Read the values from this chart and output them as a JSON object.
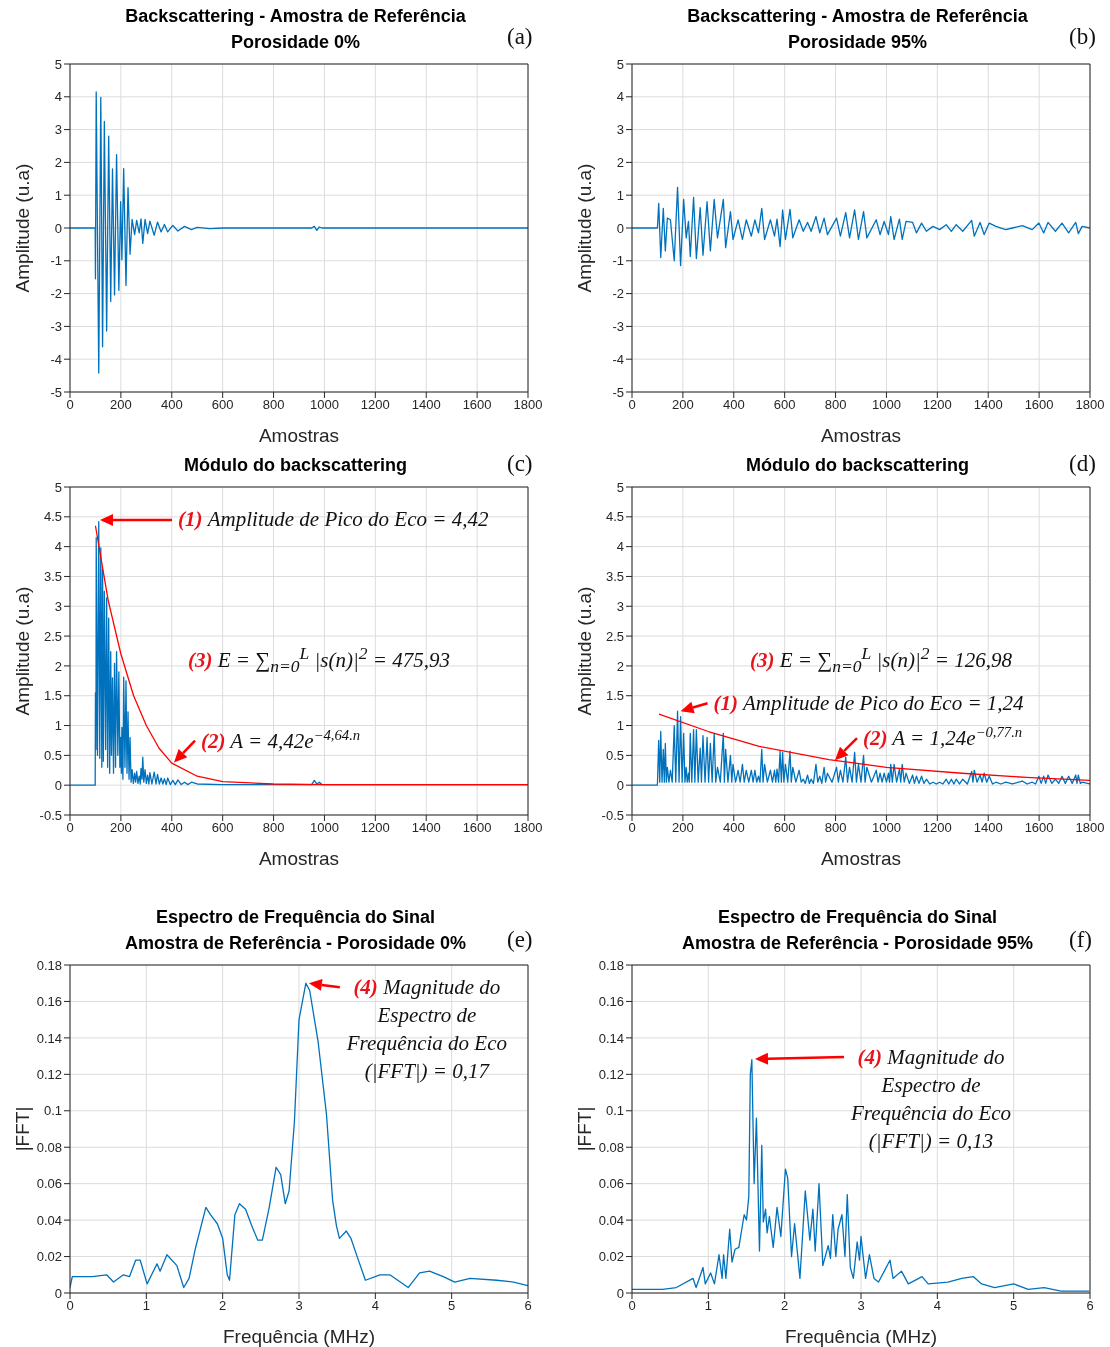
{
  "chart_data": [
    {
      "type": "line",
      "title": "Backscattering - Amostra de Referência",
      "subtitle": "Porosidade 0%",
      "xlabel": "Amostras",
      "ylabel": "Amplitude (u.a)",
      "xlim": [
        0,
        1800
      ],
      "ylim": [
        -5,
        5
      ],
      "xticks": [
        0,
        200,
        400,
        600,
        800,
        1000,
        1200,
        1400,
        1600,
        1800
      ],
      "yticks": [
        -5,
        -4,
        -3,
        -2,
        -1,
        0,
        1,
        2,
        3,
        4,
        5
      ],
      "grid": true,
      "series": [
        {
          "color": "#0072bd",
          "x": [
            0,
            99,
            100,
            103,
            113,
            121,
            128,
            135,
            144,
            152,
            160,
            167,
            175,
            183,
            192,
            199,
            204,
            211,
            220,
            228,
            236,
            244,
            254,
            262,
            272,
            279,
            286,
            295,
            305,
            314,
            331,
            344,
            358,
            371,
            384,
            404,
            424,
            450,
            477,
            500,
            550,
            600,
            950,
            960,
            970,
            980,
            990,
            1800
          ],
          "values": [
            0,
            0,
            -1.55,
            4.15,
            -4.42,
            3.98,
            -3.62,
            3.25,
            -3.14,
            2.8,
            -2.24,
            1.8,
            -2.04,
            2.24,
            -1.9,
            0.8,
            -0.97,
            1.81,
            -1.75,
            1.23,
            -0.8,
            0.26,
            -0.2,
            0.23,
            -0.15,
            0.28,
            -0.47,
            0.26,
            -0.17,
            0.21,
            -0.22,
            0.18,
            -0.12,
            0.11,
            -0.12,
            0.08,
            -0.09,
            0.05,
            -0.05,
            0.02,
            -0.02,
            0,
            0,
            0.05,
            -0.07,
            0.03,
            0,
            0
          ]
        }
      ],
      "annotations": [
        "(a)"
      ]
    },
    {
      "type": "line",
      "title": "Backscattering - Amostra de Referência",
      "subtitle": "Porosidade 95%",
      "xlabel": "Amostras",
      "ylabel": "Amplitude (u.a)",
      "xlim": [
        0,
        1800
      ],
      "ylim": [
        -5,
        5
      ],
      "xticks": [
        0,
        200,
        400,
        600,
        800,
        1000,
        1200,
        1400,
        1600,
        1800
      ],
      "yticks": [
        -5,
        -4,
        -3,
        -2,
        -1,
        0,
        1,
        2,
        3,
        4,
        5
      ],
      "grid": true,
      "series": [
        {
          "color": "#0072bd",
          "x": [
            0,
            99,
            100,
            105,
            113,
            123,
            131,
            139,
            151,
            166,
            179,
            191,
            203,
            213,
            222,
            229,
            242,
            253,
            268,
            279,
            295,
            308,
            323,
            336,
            359,
            368,
            387,
            397,
            417,
            434,
            449,
            469,
            483,
            497,
            510,
            521,
            544,
            560,
            570,
            582,
            592,
            603,
            621,
            632,
            657,
            673,
            690,
            704,
            723,
            738,
            755,
            768,
            804,
            819,
            840,
            855,
            875,
            890,
            910,
            923,
            960,
            975,
            991,
            1008,
            1017,
            1030,
            1051,
            1062,
            1077,
            1103,
            1118,
            1138,
            1157,
            1183,
            1209,
            1235,
            1255,
            1274,
            1300,
            1335,
            1345,
            1368,
            1384,
            1404,
            1430,
            1469,
            1495,
            1534,
            1573,
            1599,
            1618,
            1635,
            1664,
            1690,
            1716,
            1744,
            1754,
            1769,
            1800
          ],
          "values": [
            0,
            0,
            0,
            0.75,
            -0.9,
            0.6,
            -0.7,
            0.3,
            0.25,
            -1.0,
            1.24,
            -1.15,
            0.87,
            -0.3,
            0.2,
            -0.87,
            0.93,
            -0.93,
            0.62,
            -0.83,
            0.8,
            -0.7,
            0.87,
            -0.3,
            0.87,
            -0.6,
            0.5,
            -0.35,
            0.25,
            -0.35,
            0.25,
            -0.25,
            0.25,
            -0.15,
            0.6,
            -0.35,
            0.25,
            -0.25,
            0.27,
            -0.57,
            0.55,
            -0.35,
            0.57,
            -0.3,
            0.25,
            -0.1,
            0.17,
            -0.1,
            0.35,
            -0.15,
            0.3,
            -0.2,
            0.3,
            -0.25,
            0.47,
            -0.3,
            0.55,
            -0.35,
            0.5,
            -0.3,
            0.25,
            -0.2,
            0.2,
            -0.2,
            0.35,
            -0.35,
            0.27,
            -0.35,
            0.2,
            0.17,
            -0.15,
            0.15,
            -0.1,
            0.05,
            -0.05,
            0.1,
            -0.1,
            0.1,
            -0.1,
            0.23,
            -0.25,
            0.17,
            -0.2,
            0.15,
            0.05,
            -0.05,
            0,
            0.07,
            -0.05,
            0.15,
            -0.15,
            0.17,
            -0.1,
            0.15,
            -0.15,
            0.17,
            -0.17,
            0.05,
            0
          ]
        }
      ],
      "annotations": [
        "(b)"
      ]
    },
    {
      "type": "line",
      "title": "Módulo do backscattering",
      "xlabel": "Amostras",
      "ylabel": "Amplitude (u.a)",
      "xlim": [
        0,
        1800
      ],
      "ylim": [
        -0.5,
        5
      ],
      "xticks": [
        0,
        200,
        400,
        600,
        800,
        1000,
        1200,
        1400,
        1600,
        1800
      ],
      "yticks": [
        -0.5,
        0,
        0.5,
        1,
        1.5,
        2,
        2.5,
        3,
        3.5,
        4,
        4.5,
        5
      ],
      "grid": true,
      "series": [
        {
          "color": "#0072bd",
          "x": [
            0,
            99,
            100,
            102,
            103,
            108,
            113,
            117,
            121,
            125,
            128,
            131,
            135,
            140,
            144,
            148,
            152,
            156,
            160,
            163,
            167,
            171,
            175,
            179,
            183,
            188,
            192,
            196,
            199,
            202,
            204,
            208,
            211,
            216,
            220,
            224,
            228,
            232,
            236,
            240,
            244,
            249,
            254,
            258,
            262,
            267,
            272,
            276,
            279,
            283,
            286,
            290,
            295,
            300,
            305,
            310,
            314,
            322,
            331,
            338,
            344,
            351,
            358,
            365,
            371,
            378,
            384,
            394,
            404,
            414,
            424,
            437,
            450,
            464,
            477,
            500,
            600,
            950,
            960,
            970,
            980,
            990,
            1800
          ],
          "values": [
            0,
            0,
            1.55,
            0.6,
            4.15,
            0.5,
            4.42,
            0.45,
            3.98,
            0.3,
            3.62,
            0.4,
            3.25,
            0.6,
            3.14,
            0.3,
            2.8,
            0.2,
            2.24,
            0.5,
            1.8,
            0.2,
            2.04,
            0.3,
            2.24,
            0.5,
            1.9,
            0.3,
            0.8,
            0.2,
            0.97,
            0.1,
            1.81,
            0.3,
            1.75,
            0.2,
            1.23,
            0.1,
            0.8,
            0.05,
            0.26,
            0.03,
            0.2,
            0.05,
            0.23,
            0.03,
            0.15,
            0.02,
            0.28,
            0.1,
            0.47,
            0.05,
            0.26,
            0.03,
            0.17,
            0.02,
            0.21,
            0.02,
            0.22,
            0.02,
            0.18,
            0.02,
            0.12,
            0.02,
            0.11,
            0.01,
            0.12,
            0.01,
            0.08,
            0.01,
            0.09,
            0.01,
            0.05,
            0.01,
            0.05,
            0.02,
            0.01,
            0.01,
            0.08,
            0.02,
            0.05,
            0.01,
            0.01
          ]
        },
        {
          "color": "#ff0000",
          "x": [
            100,
            150,
            200,
            250,
            300,
            350,
            400,
            500,
            600,
            800,
            1000,
            1800
          ],
          "values": [
            4.35,
            3.1,
            2.2,
            1.5,
            1.0,
            0.62,
            0.37,
            0.15,
            0.06,
            0.02,
            0.01,
            0.01
          ]
        }
      ],
      "annotations": [
        "(c)",
        "(1) Amplitude de Pico do Eco = 4,42",
        "(3) E = ∑$_{n=0}$$^{L}$ |s(n)|$^{2}$ = 475,93",
        {
          "text": "(2) A = 4,42e$^{−4,64.n}$",
          "x": 397,
          "y": 0.38
        }
      ]
    },
    {
      "type": "line",
      "title": "Módulo do backscattering",
      "xlabel": "Amostras",
      "ylabel": "Amplitude (u.a)",
      "xlim": [
        0,
        1800
      ],
      "ylim": [
        -0.5,
        5
      ],
      "xticks": [
        0,
        200,
        400,
        600,
        800,
        1000,
        1200,
        1400,
        1600,
        1800
      ],
      "yticks": [
        -0.5,
        0,
        0.5,
        1,
        1.5,
        2,
        2.5,
        3,
        3.5,
        4,
        4.5,
        5
      ],
      "grid": true,
      "series": [
        {
          "color": "#0072bd",
          "x": [
            0,
            99,
            100,
            105,
            109,
            113,
            118,
            123,
            127,
            131,
            135,
            139,
            145,
            151,
            158,
            166,
            172,
            179,
            185,
            191,
            197,
            203,
            208,
            213,
            217,
            222,
            225,
            229,
            235,
            242,
            247,
            253,
            260,
            268,
            273,
            279,
            287,
            295,
            301,
            308,
            315,
            323,
            329,
            336,
            347,
            359,
            363,
            368,
            377,
            387,
            392,
            397,
            407,
            417,
            425,
            434,
            441,
            449,
            459,
            469,
            476,
            483,
            490,
            497,
            503,
            510,
            515,
            521,
            532,
            544,
            552,
            560,
            565,
            570,
            576,
            582,
            587,
            592,
            597,
            603,
            612,
            621,
            626,
            632,
            644,
            657,
            665,
            673,
            681,
            690,
            697,
            704,
            713,
            723,
            730,
            738,
            746,
            755,
            761,
            768,
            786,
            804,
            811,
            819,
            829,
            840,
            847,
            855,
            865,
            875,
            882,
            890,
            900,
            910,
            916,
            923,
            941,
            960,
            967,
            975,
            983,
            991,
            1000,
            1008,
            1012,
            1017,
            1023,
            1030,
            1040,
            1051,
            1056,
            1062,
            1070,
            1077,
            1090,
            1103,
            1110,
            1118,
            1128,
            1138,
            1147,
            1157,
            1170,
            1183,
            1196,
            1209,
            1222,
            1235,
            1245,
            1255,
            1265,
            1274,
            1287,
            1300,
            1318,
            1335,
            1340,
            1345,
            1356,
            1368,
            1376,
            1384,
            1394,
            1404,
            1417,
            1430,
            1450,
            1469,
            1495,
            1534,
            1553,
            1573,
            1586,
            1599,
            1608,
            1618,
            1626,
            1635,
            1650,
            1664,
            1677,
            1690,
            1703,
            1716,
            1730,
            1744,
            1749,
            1754,
            1762,
            1769,
            1800
          ],
          "values": [
            0,
            0,
            0.02,
            0.75,
            0.05,
            0.9,
            0.05,
            0.6,
            0.05,
            0.7,
            0.05,
            0.3,
            0.05,
            0.25,
            0.05,
            1.0,
            0.05,
            1.24,
            0.05,
            1.15,
            0.05,
            0.87,
            0.05,
            0.3,
            0.05,
            0.2,
            0.05,
            0.87,
            0.05,
            0.93,
            0.05,
            0.93,
            0.05,
            0.62,
            0.05,
            0.83,
            0.05,
            0.8,
            0.05,
            0.7,
            0.05,
            0.87,
            0.05,
            0.3,
            0.05,
            0.87,
            0.05,
            0.6,
            0.05,
            0.5,
            0.05,
            0.35,
            0.05,
            0.25,
            0.05,
            0.35,
            0.05,
            0.25,
            0.05,
            0.25,
            0.05,
            0.25,
            0.05,
            0.15,
            0.05,
            0.6,
            0.05,
            0.35,
            0.05,
            0.25,
            0.05,
            0.25,
            0.05,
            0.27,
            0.05,
            0.57,
            0.05,
            0.55,
            0.05,
            0.35,
            0.05,
            0.57,
            0.05,
            0.3,
            0.05,
            0.25,
            0.05,
            0.1,
            0.03,
            0.17,
            0.03,
            0.1,
            0.03,
            0.35,
            0.05,
            0.15,
            0.03,
            0.3,
            0.05,
            0.2,
            0.05,
            0.3,
            0.05,
            0.25,
            0.05,
            0.47,
            0.05,
            0.3,
            0.05,
            0.55,
            0.05,
            0.35,
            0.05,
            0.5,
            0.05,
            0.3,
            0.05,
            0.25,
            0.05,
            0.2,
            0.05,
            0.2,
            0.05,
            0.2,
            0.05,
            0.35,
            0.05,
            0.35,
            0.05,
            0.27,
            0.05,
            0.35,
            0.05,
            0.2,
            0.03,
            0.17,
            0.03,
            0.15,
            0.03,
            0.15,
            0.03,
            0.1,
            0.02,
            0.05,
            0.02,
            0.05,
            0.02,
            0.1,
            0.02,
            0.1,
            0.02,
            0.1,
            0.02,
            0.1,
            0.02,
            0.23,
            0.05,
            0.25,
            0.05,
            0.17,
            0.05,
            0.2,
            0.05,
            0.15,
            0.02,
            0.05,
            0.02,
            0.05,
            0.02,
            0.07,
            0.02,
            0.05,
            0.02,
            0.15,
            0.03,
            0.15,
            0.03,
            0.17,
            0.03,
            0.1,
            0.03,
            0.15,
            0.03,
            0.15,
            0.03,
            0.17,
            0.03,
            0.17,
            0.03,
            0.05,
            0.02
          ]
        },
        {
          "color": "#ff0000",
          "x": [
            106,
            300,
            500,
            774,
            1000,
            1297,
            1550,
            1800
          ],
          "values": [
            1.19,
            0.9,
            0.65,
            0.43,
            0.3,
            0.2,
            0.13,
            0.08
          ]
        }
      ],
      "annotations": [
        "(d)",
        {
          "text": "(1) Amplitude de Pico do Eco = 1,24",
          "x": 179,
          "y": 1.24
        },
        "(3) E = ∑$_{n=0}$$^{L}$ |s(n)|$^{2}$ = 126,98",
        {
          "text": "(2) A = 1,24e$^{−0,77.n}$",
          "x": 786,
          "y": 0.42
        }
      ]
    },
    {
      "type": "line",
      "title": "Espectro de Frequência do Sinal",
      "subtitle": "Amostra de Referência - Porosidade 0%",
      "xlabel": "Frequência (MHz)",
      "ylabel": "|FFT|",
      "xlim": [
        0,
        6
      ],
      "ylim": [
        0,
        0.18
      ],
      "xticks": [
        0,
        1,
        2,
        3,
        4,
        5,
        6
      ],
      "yticks": [
        0,
        0.02,
        0.04,
        0.06,
        0.08,
        0.1,
        0.12,
        0.14,
        0.16,
        0.18
      ],
      "grid": true,
      "series": [
        {
          "color": "#0072bd",
          "x": [
            0,
            0.03,
            0.29,
            0.48,
            0.57,
            0.7,
            0.78,
            0.86,
            0.92,
            1.01,
            1.14,
            1.18,
            1.27,
            1.4,
            1.49,
            1.56,
            1.64,
            1.78,
            1.84,
            1.93,
            2.0,
            2.06,
            2.09,
            2.16,
            2.22,
            2.3,
            2.39,
            2.46,
            2.52,
            2.61,
            2.7,
            2.76,
            2.82,
            2.87,
            2.94,
            3.0,
            3.09,
            3.14,
            3.25,
            3.36,
            3.44,
            3.49,
            3.53,
            3.62,
            3.68,
            3.77,
            3.87,
            4.06,
            4.19,
            4.43,
            4.58,
            4.71,
            4.89,
            5.04,
            5.24,
            5.59,
            5.81,
            6.0
          ],
          "values": [
            0.003,
            0.009,
            0.009,
            0.01,
            0.006,
            0.01,
            0.009,
            0.018,
            0.018,
            0.005,
            0.016,
            0.012,
            0.021,
            0.015,
            0.003,
            0.008,
            0.024,
            0.047,
            0.043,
            0.038,
            0.03,
            0.01,
            0.007,
            0.043,
            0.049,
            0.046,
            0.036,
            0.029,
            0.029,
            0.047,
            0.069,
            0.065,
            0.049,
            0.056,
            0.094,
            0.15,
            0.17,
            0.166,
            0.138,
            0.098,
            0.051,
            0.037,
            0.03,
            0.034,
            0.03,
            0.019,
            0.007,
            0.01,
            0.01,
            0.003,
            0.011,
            0.012,
            0.009,
            0.006,
            0.008,
            0.007,
            0.006,
            0.004
          ]
        }
      ],
      "annotations": [
        "(e)",
        {
          "text": "(4) Magnitude do Espectro de Frequência do Eco (|FFT|) = 0,17",
          "x": 3.09,
          "y": 0.17
        }
      ]
    },
    {
      "type": "line",
      "title": "Espectro de Frequência do Sinal",
      "subtitle": "Amostra de Referência - Porosidade 95%",
      "xlabel": "Frequência (MHz)",
      "ylabel": "|FFT|",
      "xlim": [
        0,
        6
      ],
      "ylim": [
        0,
        0.18
      ],
      "xticks": [
        0,
        1,
        2,
        3,
        4,
        5,
        6
      ],
      "yticks": [
        0,
        0.02,
        0.04,
        0.06,
        0.08,
        0.1,
        0.12,
        0.14,
        0.16,
        0.18
      ],
      "grid": true,
      "series": [
        {
          "color": "#0072bd",
          "x": [
            0,
            0.4,
            0.58,
            0.8,
            0.84,
            0.93,
            0.96,
            1.03,
            1.08,
            1.14,
            1.18,
            1.2,
            1.23,
            1.28,
            1.31,
            1.35,
            1.4,
            1.45,
            1.47,
            1.5,
            1.53,
            1.55,
            1.57,
            1.6,
            1.63,
            1.67,
            1.7,
            1.72,
            1.75,
            1.77,
            1.8,
            1.85,
            1.9,
            1.95,
            2.01,
            2.04,
            2.09,
            2.13,
            2.2,
            2.27,
            2.33,
            2.37,
            2.4,
            2.45,
            2.5,
            2.57,
            2.6,
            2.63,
            2.67,
            2.7,
            2.75,
            2.79,
            2.82,
            2.86,
            2.9,
            2.95,
            2.98,
            3.0,
            3.06,
            3.11,
            3.17,
            3.23,
            3.38,
            3.42,
            3.53,
            3.62,
            3.8,
            3.88,
            4.14,
            4.32,
            4.47,
            4.58,
            4.75,
            5.0,
            5.19,
            5.4,
            5.62,
            5.99
          ],
          "values": [
            0.002,
            0.002,
            0.003,
            0.008,
            0.003,
            0.014,
            0.005,
            0.011,
            0.005,
            0.021,
            0.008,
            0.021,
            0.008,
            0.035,
            0.017,
            0.024,
            0.025,
            0.038,
            0.043,
            0.04,
            0.053,
            0.12,
            0.128,
            0.06,
            0.096,
            0.023,
            0.081,
            0.039,
            0.046,
            0.033,
            0.042,
            0.025,
            0.047,
            0.031,
            0.068,
            0.063,
            0.02,
            0.038,
            0.008,
            0.056,
            0.029,
            0.046,
            0.023,
            0.06,
            0.015,
            0.026,
            0.019,
            0.043,
            0.02,
            0.035,
            0.043,
            0.02,
            0.054,
            0.014,
            0.008,
            0.028,
            0.018,
            0.031,
            0.008,
            0.021,
            0.008,
            0.006,
            0.018,
            0.008,
            0.012,
            0.005,
            0.009,
            0.005,
            0.006,
            0.008,
            0.009,
            0.005,
            0.003,
            0.005,
            0.002,
            0.003,
            0.001,
            0.001
          ]
        }
      ],
      "annotations": [
        "(f)",
        "(4) Magnitude do Espectro de Frequência do Eco (|FFT|) = 0,13"
      ]
    }
  ]
}
